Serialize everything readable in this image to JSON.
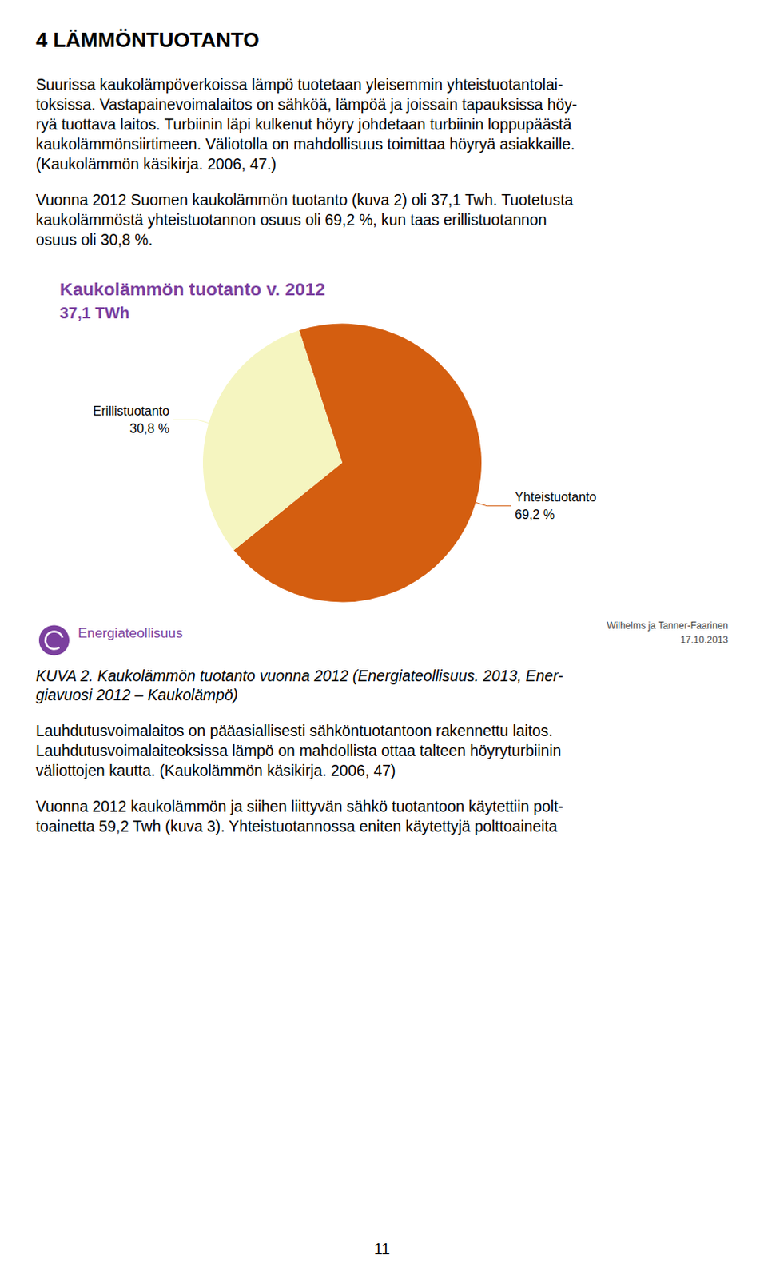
{
  "chart_data": {
    "type": "pie",
    "title": "Kaukolämmön tuotanto v. 2012",
    "subtitle": "37,1 TWh",
    "categories": [
      "Yhteistuotanto",
      "Erillistuotanto"
    ],
    "values": [
      69.2,
      30.8
    ],
    "value_labels": [
      "69,2 %",
      "30,8 %"
    ],
    "colors": [
      "#D45E10",
      "#F5F5C0"
    ],
    "data_labels": true
  },
  "heading": "4 LÄMMÖNTUOTANTO",
  "paragraphs_before": [
    [
      "Suurissa kaukolämpöverkoissa lämpö tuotetaan yleisemmin yhteistuotantolai-",
      "toksissa. Vastapainevoimalaitos on sähköä, lämpöä ja joissain tapauksissa höy-",
      "ryä tuottava laitos. Turbiinin läpi kulkenut höyry johdetaan turbiinin loppupäästä",
      "kaukolämmönsiirtimeen. Väliotolla on mahdollisuus toimittaa höyryä asiakkaille.",
      "(Kaukolämmön käsikirja. 2006, 47.)"
    ],
    [
      "Vuonna 2012 Suomen kaukolämmön tuotanto (kuva 2) oli 37,1 Twh. Tuotetusta",
      "kaukolämmöstä yhteistuotannon osuus oli 69,2 %, kun taas erillistuotannon",
      "osuus oli 30,8 %."
    ]
  ],
  "logo_text": "Energiateollisuus",
  "credit": "Wilhelms ja Tanner-Faarinen\n17.10.2013",
  "caption": [
    "KUVA 2. Kaukolämmön tuotanto vuonna 2012 (Energiateollisuus. 2013, Ener-",
    "giavuosi 2012 – Kaukolämpö)"
  ],
  "paragraphs_after": [
    [
      "Lauhdutusvoimalaitos on pääasiallisesti sähköntuotantoon rakennettu laitos.",
      "Lauhdutusvoimalaiteoksissa lämpö on mahdollista ottaa talteen höyryturbiinin",
      "väliottojen kautta. (Kaukolämmön käsikirja. 2006, 47)"
    ],
    [
      "Vuonna 2012 kaukolämmön ja siihen liittyvän sähkö tuotantoon käytettiin polt-",
      "toainetta 59,2 Twh (kuva 3). Yhteistuotannossa eniten käytettyjä polttoaineita"
    ]
  ],
  "page_number": "11"
}
